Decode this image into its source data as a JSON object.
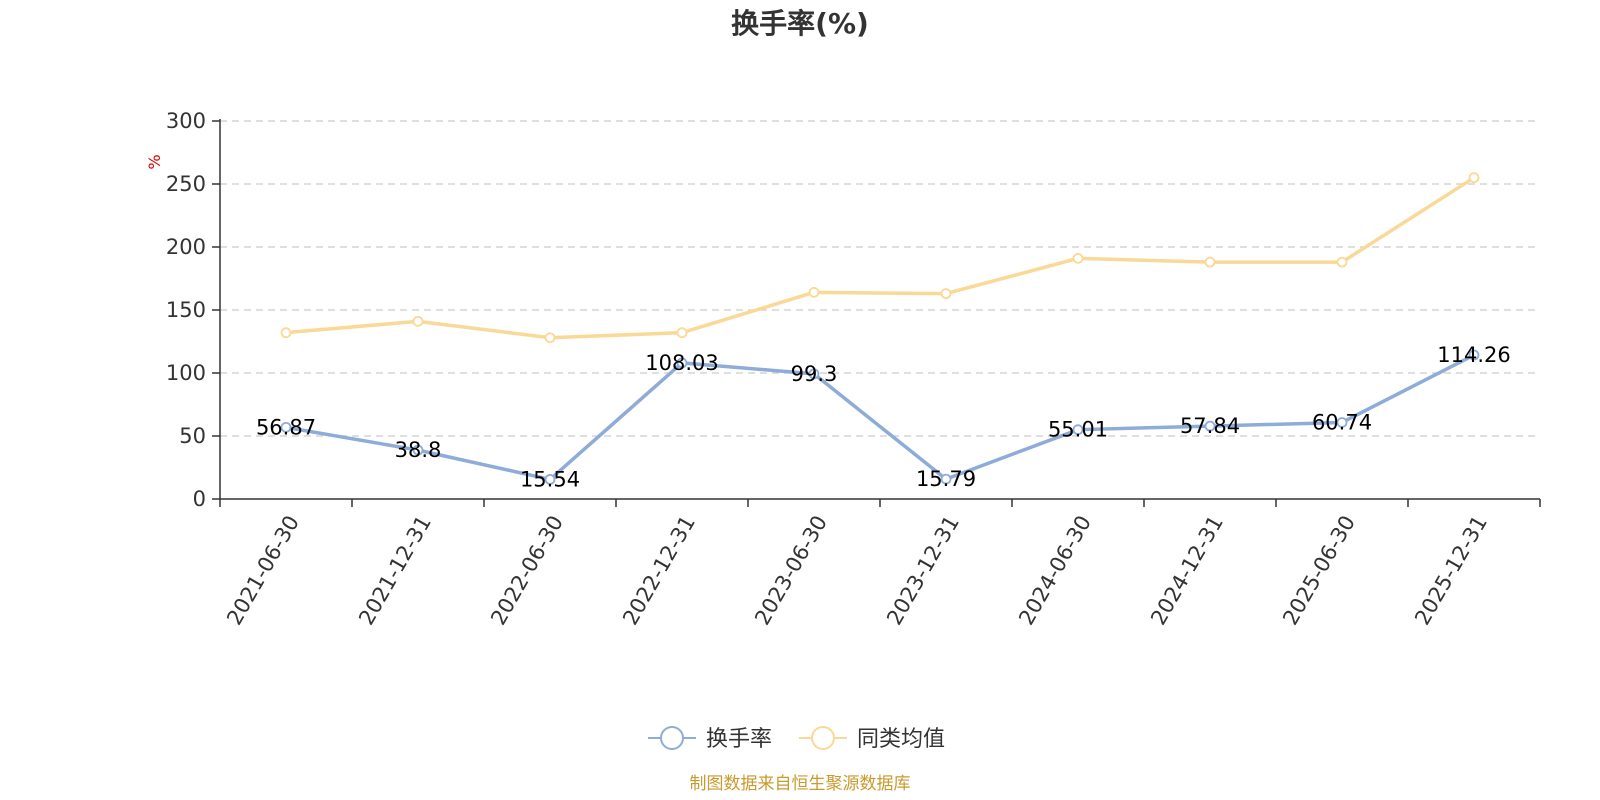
{
  "chart_data": {
    "type": "line",
    "title": "换手率(%)",
    "ylabel": "%",
    "xlabel": "",
    "ylim": [
      0,
      300
    ],
    "yticks": [
      0,
      50,
      100,
      150,
      200,
      250,
      300
    ],
    "grid": true,
    "legend_position": "bottom",
    "categories": [
      "2021-06-30",
      "2021-12-31",
      "2022-06-30",
      "2022-12-31",
      "2023-06-30",
      "2023-12-31",
      "2024-06-30",
      "2024-12-31",
      "2025-06-30",
      "2025-12-31"
    ],
    "series": [
      {
        "name": "换手率",
        "color": "#8eacd8",
        "show_labels": true,
        "values": [
          56.87,
          38.8,
          15.54,
          108.03,
          99.3,
          15.79,
          55.01,
          57.84,
          60.74,
          114.26
        ],
        "labels": [
          "56.87",
          "38.8",
          "15.54",
          "108.03",
          "99.3",
          "15.79",
          "55.01",
          "57.84",
          "60.74",
          "114.26"
        ]
      },
      {
        "name": "同类均值",
        "color": "#fad896",
        "show_labels": false,
        "values": [
          132,
          141,
          128,
          132,
          164,
          163,
          191,
          188,
          188,
          255
        ]
      }
    ],
    "source": "制图数据来自恒生聚源数据库"
  }
}
